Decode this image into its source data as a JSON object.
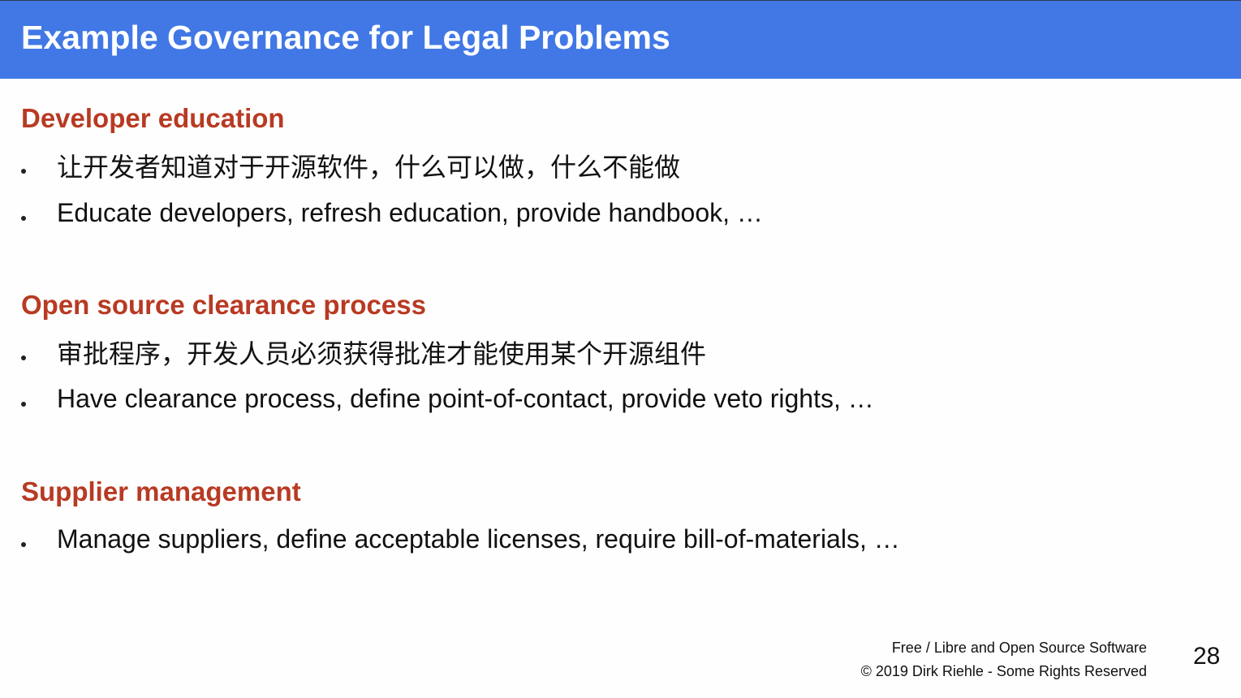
{
  "slide": {
    "title": "Example Governance for Legal Problems",
    "sections": [
      {
        "heading": "Developer education",
        "bullets": [
          "让开发者知道对于开源软件，什么可以做，什么不能做",
          "Educate developers, refresh education, provide handbook, …"
        ]
      },
      {
        "heading": "Open source clearance process",
        "bullets": [
          "审批程序，开发人员必须获得批准才能使用某个开源组件",
          "Have clearance process, define point-of-contact, provide veto rights, …"
        ]
      },
      {
        "heading": "Supplier management",
        "bullets": [
          "Manage suppliers, define acceptable licenses, require bill-of-materials, …"
        ]
      }
    ],
    "footer": {
      "line1": "Free / Libre and Open Source Software",
      "line2": "© 2019 Dirk Riehle - Some Rights Reserved"
    },
    "page_number": "28"
  },
  "colors": {
    "title_bar": "#4178e6",
    "heading": "#b83a23",
    "body_text": "#111111"
  }
}
